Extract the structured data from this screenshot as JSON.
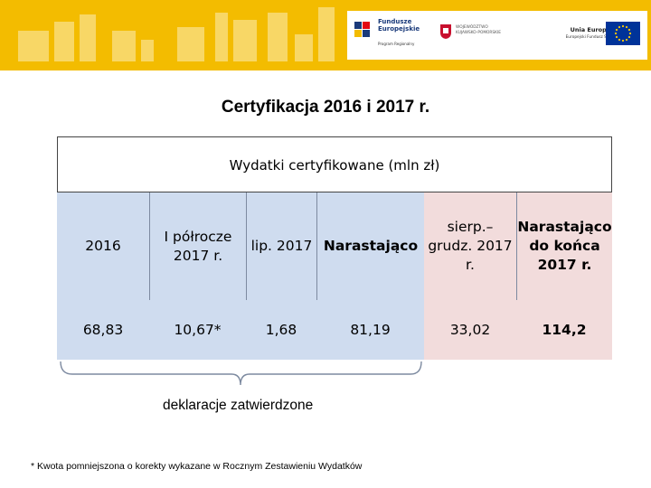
{
  "banner": {
    "logo_fe": {
      "line1": "Fundusze",
      "line2": "Europejskie",
      "sub": "Program Regionalny"
    },
    "logo_region": {
      "line1": "WOJEWÓDZTWO",
      "line2": "KUJAWSKO-POMORSKIE"
    },
    "logo_eu": {
      "title": "Unia Europejska",
      "sub": "Europejski Fundusz Społeczny"
    },
    "colors": {
      "banner": "#f3bc00",
      "shapes": "#f8d766"
    }
  },
  "title": "Certyfikacja 2016 i 2017 r.",
  "table": {
    "header": "Wydatki certyfikowane (mln zł)",
    "col1": {
      "label": "2016",
      "value": "68,83"
    },
    "col2": {
      "label": "I półrocze 2017 r.",
      "value": "10,67*"
    },
    "col3": {
      "label": "lip. 2017",
      "value": "1,68"
    },
    "col4": {
      "label": "Narastająco",
      "value": "81,19"
    },
    "col5": {
      "label": "sierp.– grudz. 2017 r.",
      "value": "33,02"
    },
    "col6": {
      "label": "Narastająco do końca 2017 r.",
      "value": "114,2"
    },
    "colors": {
      "approved": "#cfdcef",
      "other": "#f2dcdc"
    }
  },
  "brace_caption": "deklaracje zatwierdzone",
  "footnote": "* Kwota pomniejszona o korekty wykazane w Rocznym Zestawieniu Wydatków"
}
